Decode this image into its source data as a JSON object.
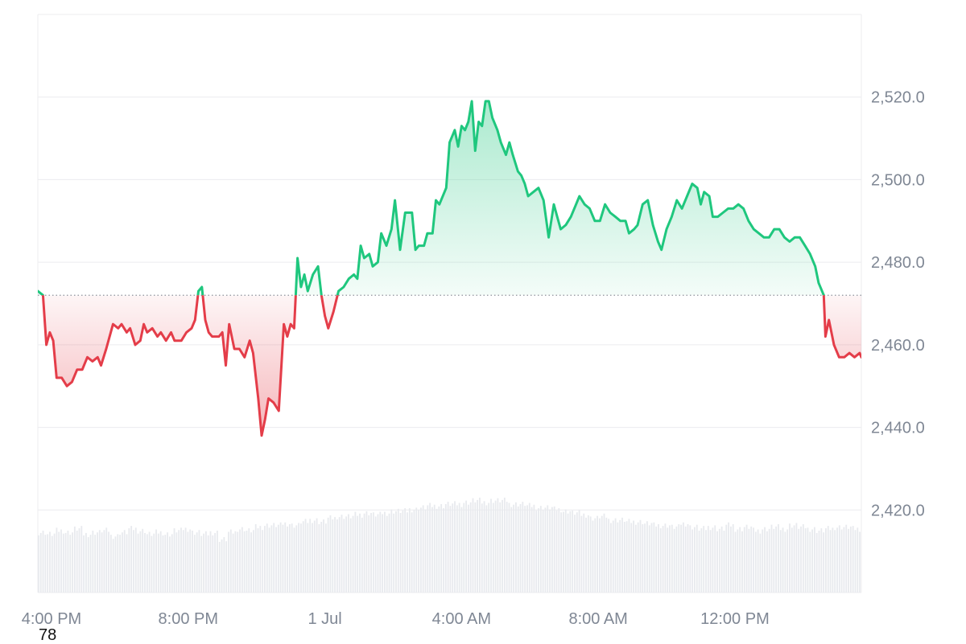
{
  "chart_data": {
    "type": "area",
    "baseline": 2472,
    "ylim": [
      2400,
      2540
    ],
    "yticks": [
      2420,
      2440,
      2460,
      2480,
      2500,
      2520
    ],
    "ytick_labels": [
      "2,420.0",
      "2,440.0",
      "2,460.0",
      "2,480.0",
      "2,500.0",
      "2,520.0"
    ],
    "xtick_labels": [
      "4:00 PM",
      "8:00 PM",
      "1 Jul",
      "4:00 AM",
      "8:00 AM",
      "12:00 PM"
    ],
    "xtick_hours": [
      0.4,
      4.4,
      8.4,
      12.4,
      16.4,
      20.4
    ],
    "x_start_hour": 0,
    "x_end_hour": 24.1,
    "price_points": [
      [
        0.0,
        2473
      ],
      [
        0.15,
        2472
      ],
      [
        0.25,
        2460
      ],
      [
        0.35,
        2463
      ],
      [
        0.45,
        2461
      ],
      [
        0.55,
        2452
      ],
      [
        0.7,
        2452
      ],
      [
        0.85,
        2450
      ],
      [
        1.0,
        2451
      ],
      [
        1.15,
        2454
      ],
      [
        1.3,
        2454
      ],
      [
        1.45,
        2457
      ],
      [
        1.6,
        2456
      ],
      [
        1.75,
        2457
      ],
      [
        1.85,
        2455
      ],
      [
        2.0,
        2459
      ],
      [
        2.2,
        2465
      ],
      [
        2.35,
        2464
      ],
      [
        2.45,
        2465
      ],
      [
        2.6,
        2463
      ],
      [
        2.7,
        2464
      ],
      [
        2.85,
        2460
      ],
      [
        3.0,
        2461
      ],
      [
        3.1,
        2465
      ],
      [
        3.2,
        2463
      ],
      [
        3.35,
        2464
      ],
      [
        3.5,
        2462
      ],
      [
        3.6,
        2463
      ],
      [
        3.75,
        2461
      ],
      [
        3.9,
        2463
      ],
      [
        4.0,
        2461
      ],
      [
        4.2,
        2461
      ],
      [
        4.35,
        2463
      ],
      [
        4.5,
        2464
      ],
      [
        4.6,
        2466
      ],
      [
        4.7,
        2473
      ],
      [
        4.8,
        2474
      ],
      [
        4.9,
        2466
      ],
      [
        5.0,
        2463
      ],
      [
        5.1,
        2462
      ],
      [
        5.3,
        2462
      ],
      [
        5.4,
        2463
      ],
      [
        5.5,
        2455
      ],
      [
        5.6,
        2465
      ],
      [
        5.75,
        2459
      ],
      [
        5.9,
        2459
      ],
      [
        6.05,
        2457
      ],
      [
        6.2,
        2461
      ],
      [
        6.3,
        2458
      ],
      [
        6.45,
        2447
      ],
      [
        6.55,
        2438
      ],
      [
        6.65,
        2442
      ],
      [
        6.75,
        2447
      ],
      [
        6.9,
        2446
      ],
      [
        7.05,
        2444
      ],
      [
        7.2,
        2465
      ],
      [
        7.3,
        2462
      ],
      [
        7.4,
        2465
      ],
      [
        7.5,
        2464
      ],
      [
        7.6,
        2481
      ],
      [
        7.7,
        2474
      ],
      [
        7.8,
        2477
      ],
      [
        7.9,
        2473
      ],
      [
        8.05,
        2477
      ],
      [
        8.2,
        2479
      ],
      [
        8.3,
        2472
      ],
      [
        8.4,
        2467
      ],
      [
        8.5,
        2464
      ],
      [
        8.65,
        2468
      ],
      [
        8.8,
        2473
      ],
      [
        8.95,
        2474
      ],
      [
        9.1,
        2476
      ],
      [
        9.25,
        2477
      ],
      [
        9.35,
        2476
      ],
      [
        9.45,
        2484
      ],
      [
        9.55,
        2481
      ],
      [
        9.7,
        2482
      ],
      [
        9.8,
        2479
      ],
      [
        9.95,
        2480
      ],
      [
        10.05,
        2487
      ],
      [
        10.2,
        2484
      ],
      [
        10.35,
        2488
      ],
      [
        10.45,
        2495
      ],
      [
        10.6,
        2483
      ],
      [
        10.75,
        2492
      ],
      [
        10.95,
        2492
      ],
      [
        11.05,
        2483
      ],
      [
        11.15,
        2484
      ],
      [
        11.3,
        2484
      ],
      [
        11.4,
        2487
      ],
      [
        11.55,
        2487
      ],
      [
        11.65,
        2495
      ],
      [
        11.75,
        2494
      ],
      [
        11.95,
        2498
      ],
      [
        12.05,
        2509
      ],
      [
        12.2,
        2512
      ],
      [
        12.3,
        2508
      ],
      [
        12.4,
        2513
      ],
      [
        12.5,
        2512
      ],
      [
        12.6,
        2514
      ],
      [
        12.7,
        2519
      ],
      [
        12.8,
        2507
      ],
      [
        12.9,
        2514
      ],
      [
        13.0,
        2513
      ],
      [
        13.1,
        2519
      ],
      [
        13.2,
        2519
      ],
      [
        13.3,
        2515
      ],
      [
        13.45,
        2512
      ],
      [
        13.55,
        2509
      ],
      [
        13.7,
        2506
      ],
      [
        13.8,
        2509
      ],
      [
        13.9,
        2506
      ],
      [
        14.05,
        2502
      ],
      [
        14.15,
        2501
      ],
      [
        14.25,
        2499
      ],
      [
        14.35,
        2496
      ],
      [
        14.5,
        2497
      ],
      [
        14.65,
        2498
      ],
      [
        14.8,
        2495
      ],
      [
        14.95,
        2486
      ],
      [
        15.1,
        2494
      ],
      [
        15.2,
        2491
      ],
      [
        15.3,
        2488
      ],
      [
        15.45,
        2489
      ],
      [
        15.6,
        2491
      ],
      [
        15.75,
        2494
      ],
      [
        15.85,
        2496
      ],
      [
        16.0,
        2494
      ],
      [
        16.15,
        2493
      ],
      [
        16.3,
        2490
      ],
      [
        16.45,
        2490
      ],
      [
        16.6,
        2494
      ],
      [
        16.75,
        2492
      ],
      [
        16.9,
        2491
      ],
      [
        17.05,
        2490
      ],
      [
        17.2,
        2490
      ],
      [
        17.3,
        2487
      ],
      [
        17.45,
        2488
      ],
      [
        17.55,
        2489
      ],
      [
        17.7,
        2494
      ],
      [
        17.85,
        2495
      ],
      [
        18.0,
        2489
      ],
      [
        18.15,
        2485
      ],
      [
        18.25,
        2483
      ],
      [
        18.4,
        2488
      ],
      [
        18.55,
        2491
      ],
      [
        18.7,
        2495
      ],
      [
        18.85,
        2493
      ],
      [
        19.0,
        2496
      ],
      [
        19.15,
        2499
      ],
      [
        19.3,
        2498
      ],
      [
        19.4,
        2494
      ],
      [
        19.5,
        2497
      ],
      [
        19.65,
        2496
      ],
      [
        19.75,
        2491
      ],
      [
        19.9,
        2491
      ],
      [
        20.05,
        2492
      ],
      [
        20.2,
        2493
      ],
      [
        20.35,
        2493
      ],
      [
        20.5,
        2494
      ],
      [
        20.65,
        2493
      ],
      [
        20.8,
        2490
      ],
      [
        20.95,
        2488
      ],
      [
        21.1,
        2487
      ],
      [
        21.25,
        2486
      ],
      [
        21.4,
        2486
      ],
      [
        21.55,
        2488
      ],
      [
        21.7,
        2488
      ],
      [
        21.85,
        2486
      ],
      [
        22.0,
        2485
      ],
      [
        22.15,
        2486
      ],
      [
        22.3,
        2486
      ],
      [
        22.45,
        2484
      ],
      [
        22.6,
        2482
      ],
      [
        22.75,
        2479
      ],
      [
        22.85,
        2475
      ],
      [
        23.0,
        2472
      ],
      [
        23.05,
        2462
      ],
      [
        23.15,
        2466
      ],
      [
        23.3,
        2460
      ],
      [
        23.45,
        2457
      ],
      [
        23.6,
        2457
      ],
      [
        23.75,
        2458
      ],
      [
        23.9,
        2457
      ],
      [
        24.05,
        2458
      ],
      [
        24.1,
        2457
      ]
    ],
    "volume_series": "relative bar heights drawn as faint gray bars",
    "volume_levels": [
      0.34,
      0.33,
      0.35,
      0.34,
      0.36,
      0.33,
      0.34,
      0.35,
      0.32,
      0.34,
      0.36,
      0.35,
      0.33,
      0.34,
      0.33,
      0.35,
      0.36,
      0.34,
      0.33,
      0.34,
      0.3,
      0.34,
      0.36,
      0.35,
      0.37,
      0.38,
      0.38,
      0.39,
      0.38,
      0.4,
      0.41,
      0.4,
      0.42,
      0.43,
      0.43,
      0.44,
      0.45,
      0.44,
      0.45,
      0.46,
      0.46,
      0.47,
      0.48,
      0.49,
      0.49,
      0.5,
      0.5,
      0.51,
      0.52,
      0.51,
      0.52,
      0.52,
      0.5,
      0.5,
      0.49,
      0.48,
      0.48,
      0.47,
      0.46,
      0.45,
      0.44,
      0.42,
      0.43,
      0.41,
      0.41,
      0.4,
      0.4,
      0.39,
      0.38,
      0.38,
      0.37,
      0.39,
      0.37,
      0.36,
      0.37,
      0.36,
      0.38,
      0.36,
      0.37,
      0.35,
      0.36,
      0.37,
      0.36,
      0.38,
      0.37,
      0.36,
      0.35,
      0.36,
      0.37,
      0.37,
      0.36
    ],
    "colors": {
      "up_line": "#1fc77e",
      "down_line": "#e43d49",
      "up_fill": "#1fc77e",
      "down_fill": "#e43d49",
      "grid": "#ececef",
      "baseline_dots": "#8e939c",
      "volume": "#e8eaee",
      "axis_text": "#7f8794"
    }
  },
  "corner_text": "78"
}
